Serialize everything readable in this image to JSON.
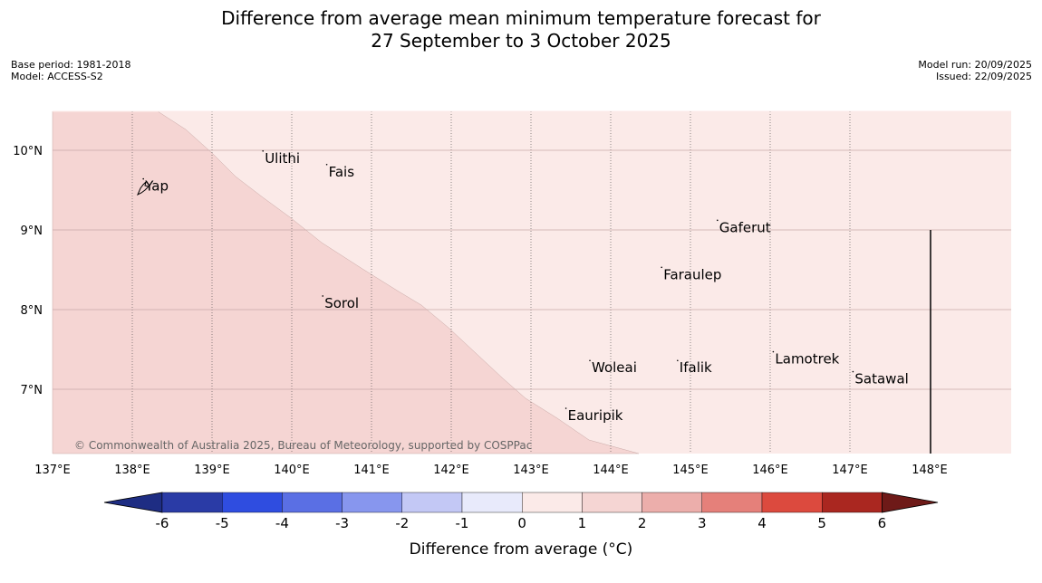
{
  "title": {
    "line1": "Difference from average mean minimum temperature forecast for",
    "line2": "27 September to 3 October 2025"
  },
  "meta_left": {
    "base_period": "Base period: 1981-2018",
    "model": "Model: ACCESS-S2"
  },
  "meta_right": {
    "model_run": "Model run: 20/09/2025",
    "issued": "Issued: 22/09/2025"
  },
  "map": {
    "lon_range": [
      137,
      149
    ],
    "lat_range": [
      6.2,
      10.5
    ],
    "lon_ticks": [
      "137°E",
      "138°E",
      "139°E",
      "140°E",
      "141°E",
      "142°E",
      "143°E",
      "144°E",
      "145°E",
      "146°E",
      "147°E",
      "148°E"
    ],
    "lat_ticks": [
      "10°N",
      "9°N",
      "8°N",
      "7°N"
    ],
    "places": [
      {
        "name": "Yap",
        "lon": 138.15,
        "lat": 9.55
      },
      {
        "name": "Ulithi",
        "lon": 139.65,
        "lat": 9.9
      },
      {
        "name": "Fais",
        "lon": 140.45,
        "lat": 9.73
      },
      {
        "name": "Gaferut",
        "lon": 145.35,
        "lat": 9.03
      },
      {
        "name": "Faraulep",
        "lon": 144.65,
        "lat": 8.44
      },
      {
        "name": "Sorol",
        "lon": 140.4,
        "lat": 8.08
      },
      {
        "name": "Lamotrek",
        "lon": 146.05,
        "lat": 7.38
      },
      {
        "name": "Woleai",
        "lon": 143.75,
        "lat": 7.27
      },
      {
        "name": "Ifalik",
        "lon": 144.85,
        "lat": 7.27
      },
      {
        "name": "Satawal",
        "lon": 147.05,
        "lat": 7.13
      },
      {
        "name": "Eauripik",
        "lon": 143.45,
        "lat": 6.67
      }
    ],
    "boundary_lon": 148,
    "copyright": "© Commonwealth of Australia 2025, Bureau of Meteorology, supported by COSPPac",
    "region_colors": {
      "warm_1_2": "#f5d5d3",
      "warm_0_1": "#fbeae8"
    }
  },
  "colorbar": {
    "title": "Difference from average (°C)",
    "ticks": [
      "-6",
      "-5",
      "-4",
      "-3",
      "-2",
      "-1",
      "0",
      "1",
      "2",
      "3",
      "4",
      "5",
      "6"
    ],
    "colors": [
      "#2a3ba6",
      "#2f4de0",
      "#5a6fe4",
      "#8796ee",
      "#c3c8f5",
      "#e8eafb",
      "#fbeae8",
      "#f5d5d3",
      "#ecaeab",
      "#e5807a",
      "#dc4a3e",
      "#aa2720"
    ],
    "low_extend": "#1e2d83",
    "high_extend": "#6e1a18"
  }
}
